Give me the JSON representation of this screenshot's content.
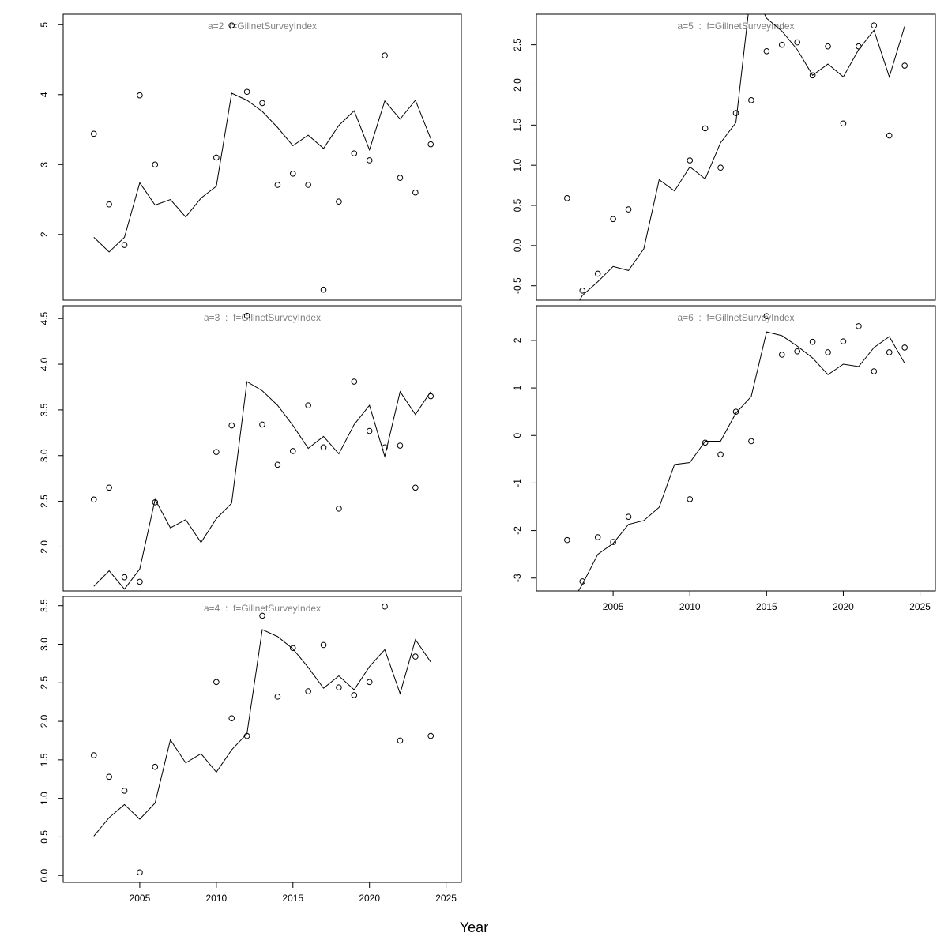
{
  "xlabel": "Year",
  "chart_data": [
    {
      "type": "line",
      "title": "a=2  f=GillnetSurveyIndex",
      "x": [
        2002,
        2003,
        2004,
        2005,
        2006,
        2007,
        2008,
        2009,
        2010,
        2011,
        2012,
        2013,
        2014,
        2015,
        2016,
        2017,
        2018,
        2019,
        2020,
        2021,
        2022,
        2023,
        2024
      ],
      "xlim": [
        2000,
        2026
      ],
      "ylim": [
        1.06,
        5.15
      ],
      "yticks": [
        2,
        3,
        4,
        5
      ],
      "series": [
        {
          "style": "points",
          "color": "#000000",
          "values": [
            3.44,
            2.43,
            1.85,
            3.99,
            3.0,
            null,
            null,
            null,
            3.1,
            4.99,
            4.04,
            3.88,
            2.71,
            2.87,
            2.71,
            1.21,
            2.47,
            3.16,
            3.06,
            4.56,
            2.81,
            2.6,
            3.29
          ]
        },
        {
          "style": "line",
          "color": "#000000",
          "values": [
            1.96,
            1.75,
            1.96,
            2.74,
            2.42,
            2.5,
            2.25,
            2.52,
            2.69,
            4.02,
            3.92,
            3.76,
            3.53,
            3.27,
            3.42,
            3.23,
            3.56,
            3.77,
            3.21,
            3.91,
            3.65,
            3.92,
            3.37
          ]
        }
      ]
    },
    {
      "type": "line",
      "title": "a=3  :  f=GillnetSurveyIndex",
      "x": [
        2002,
        2003,
        2004,
        2005,
        2006,
        2007,
        2008,
        2009,
        2010,
        2011,
        2012,
        2013,
        2014,
        2015,
        2016,
        2017,
        2018,
        2019,
        2020,
        2021,
        2022,
        2023,
        2024
      ],
      "xlim": [
        2000,
        2026
      ],
      "ylim": [
        1.52,
        4.64
      ],
      "yticks": [
        {
          "value": 2,
          "label": "2.0"
        },
        2.5,
        {
          "value": 3,
          "label": "3.0"
        },
        3.5,
        {
          "value": 4,
          "label": "4.0"
        },
        4.5
      ],
      "series": [
        {
          "style": "points",
          "color": "#000000",
          "values": [
            2.52,
            2.65,
            1.67,
            1.62,
            2.49,
            null,
            null,
            null,
            3.04,
            3.33,
            4.53,
            3.34,
            2.9,
            3.05,
            3.55,
            3.09,
            2.42,
            3.81,
            3.27,
            3.09,
            3.11,
            2.65,
            3.65
          ]
        },
        {
          "style": "line",
          "color": "#000000",
          "values": [
            1.57,
            1.74,
            1.54,
            1.76,
            2.52,
            2.21,
            2.3,
            2.05,
            2.31,
            2.48,
            3.81,
            3.71,
            3.55,
            3.33,
            3.08,
            3.21,
            3.02,
            3.34,
            3.55,
            2.99,
            3.7,
            3.45,
            3.7
          ]
        }
      ]
    },
    {
      "type": "line",
      "title": "a=4  :  f=GillnetSurveyIndex",
      "x": [
        2002,
        2003,
        2004,
        2005,
        2006,
        2007,
        2008,
        2009,
        2010,
        2011,
        2012,
        2013,
        2014,
        2015,
        2016,
        2017,
        2018,
        2019,
        2020,
        2021,
        2022,
        2023,
        2024
      ],
      "xlim": [
        2000,
        2026
      ],
      "xticks": [
        2005,
        2010,
        2015,
        2020,
        2025
      ],
      "ylim": [
        -0.09,
        3.62
      ],
      "yticks": [
        {
          "value": 0,
          "label": "0.0"
        },
        0.5,
        {
          "value": 1,
          "label": "1.0"
        },
        1.5,
        {
          "value": 2,
          "label": "2.0"
        },
        2.5,
        {
          "value": 3,
          "label": "3.0"
        },
        3.5
      ],
      "series": [
        {
          "style": "points",
          "color": "#000000",
          "values": [
            1.56,
            1.28,
            1.1,
            0.04,
            1.41,
            null,
            null,
            null,
            2.51,
            2.04,
            1.81,
            3.37,
            2.32,
            2.95,
            2.39,
            2.99,
            2.44,
            2.34,
            2.51,
            3.49,
            1.75,
            2.84,
            1.81
          ]
        },
        {
          "style": "line",
          "color": "#000000",
          "values": [
            0.51,
            0.75,
            0.92,
            0.73,
            0.94,
            1.76,
            1.46,
            1.58,
            1.34,
            1.63,
            1.84,
            3.19,
            3.1,
            2.94,
            2.7,
            2.43,
            2.59,
            2.41,
            2.71,
            2.93,
            2.36,
            3.06,
            2.77
          ]
        }
      ]
    },
    {
      "type": "line",
      "title": "a=5  :  f=GillnetSurveyIndex",
      "x": [
        2002,
        2003,
        2004,
        2005,
        2006,
        2007,
        2008,
        2009,
        2010,
        2011,
        2012,
        2013,
        2014,
        2015,
        2016,
        2017,
        2018,
        2019,
        2020,
        2021,
        2022,
        2023,
        2024
      ],
      "xlim": [
        2000,
        2026
      ],
      "ylim": [
        -0.68,
        2.88
      ],
      "yticks": [
        -0.5,
        {
          "value": 0,
          "label": "0.0"
        },
        0.5,
        {
          "value": 1,
          "label": "1.0"
        },
        1.5,
        {
          "value": 2,
          "label": "2.0"
        },
        2.5
      ],
      "series": [
        {
          "style": "points",
          "color": "#000000",
          "values": [
            0.59,
            -0.56,
            -0.35,
            0.33,
            0.45,
            null,
            null,
            null,
            1.06,
            1.46,
            0.97,
            1.65,
            1.81,
            2.42,
            2.5,
            2.53,
            2.12,
            2.48,
            1.52,
            2.48,
            2.74,
            1.37,
            2.24
          ]
        },
        {
          "style": "line",
          "color": "#000000",
          "values": [
            -0.95,
            -0.62,
            -0.45,
            -0.26,
            -0.31,
            -0.04,
            0.82,
            0.68,
            0.98,
            0.83,
            1.28,
            1.53,
            3.21,
            2.83,
            2.67,
            2.44,
            2.12,
            2.26,
            2.1,
            2.44,
            2.68,
            2.1,
            2.73
          ]
        }
      ]
    },
    {
      "type": "line",
      "title": "a=6  :  f=GillnetSurveyIndex",
      "x": [
        2002,
        2003,
        2004,
        2005,
        2006,
        2007,
        2008,
        2009,
        2010,
        2011,
        2012,
        2013,
        2014,
        2015,
        2016,
        2017,
        2018,
        2019,
        2020,
        2021,
        2022,
        2023,
        2024
      ],
      "xlim": [
        2000,
        2026
      ],
      "xticks": [
        2005,
        2010,
        2015,
        2020,
        2025
      ],
      "ylim": [
        -3.27,
        2.73
      ],
      "yticks": [
        -3,
        -2,
        -1,
        0,
        1,
        2
      ],
      "series": [
        {
          "style": "points",
          "color": "#000000",
          "values": [
            -2.2,
            -3.07,
            -2.14,
            -2.24,
            -1.71,
            null,
            null,
            null,
            -1.34,
            -0.15,
            -0.4,
            0.5,
            -0.12,
            2.51,
            1.7,
            1.77,
            1.97,
            1.75,
            1.98,
            2.3,
            1.35,
            1.75,
            1.85
          ]
        },
        {
          "style": "line",
          "color": "#000000",
          "values": [
            -3.66,
            -3.13,
            -2.5,
            -2.27,
            -1.87,
            -1.79,
            -1.51,
            -0.61,
            -0.57,
            -0.12,
            -0.12,
            0.47,
            0.82,
            2.18,
            2.1,
            1.88,
            1.63,
            1.28,
            1.5,
            1.45,
            1.85,
            2.08,
            1.52
          ]
        }
      ]
    }
  ]
}
